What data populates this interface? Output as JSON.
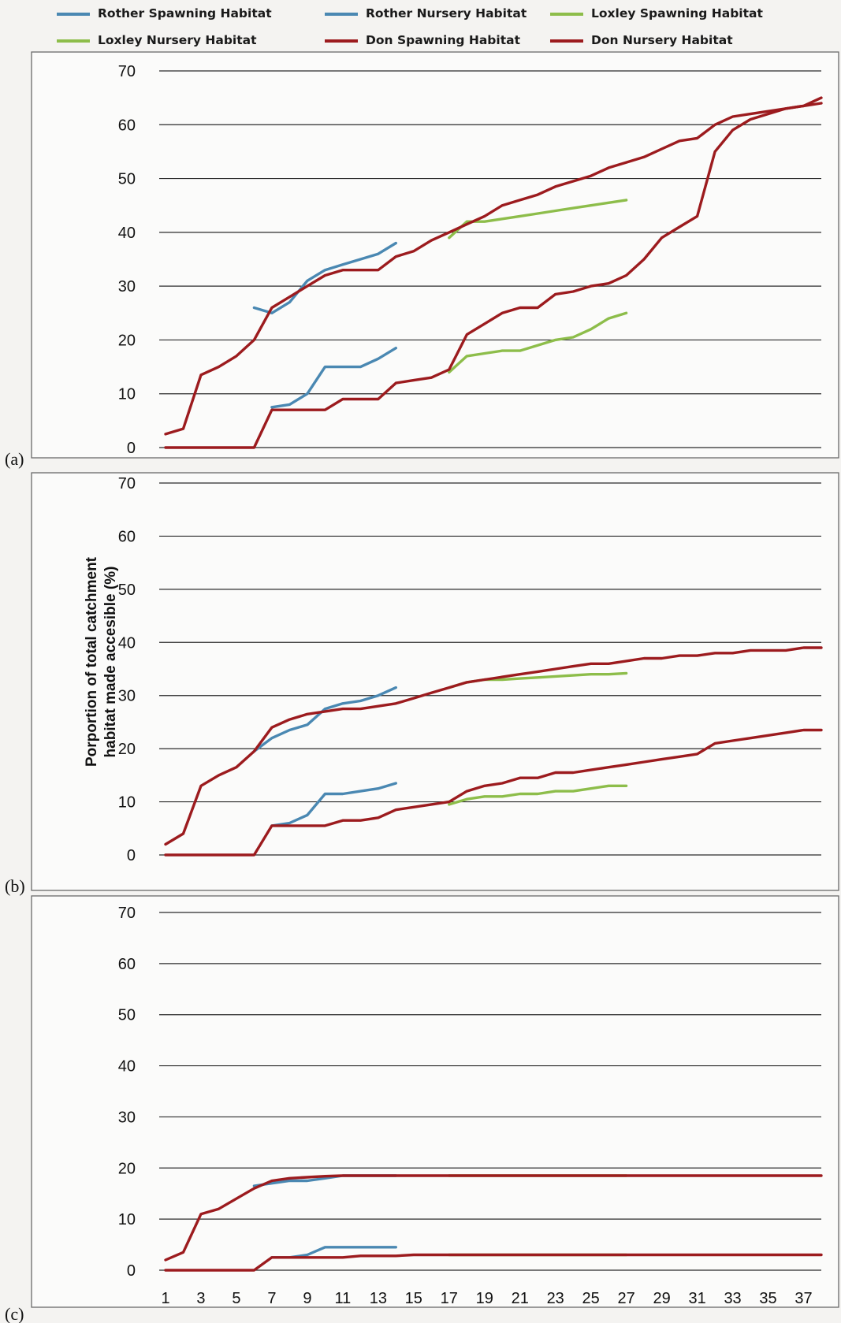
{
  "colors": {
    "rother": "#4a88b2",
    "loxley": "#8dbd4a",
    "don": "#9c1b1e"
  },
  "legend": [
    {
      "label": "Rother Spawning Habitat",
      "color": "#4a88b2"
    },
    {
      "label": "Rother Nursery Habitat",
      "color": "#4a88b2"
    },
    {
      "label": "Loxley Spawning Habitat",
      "color": "#8dbd4a"
    },
    {
      "label": "Loxley Nursery Habitat",
      "color": "#8dbd4a"
    },
    {
      "label": "Don Spawning Habitat",
      "color": "#9c1b1e"
    },
    {
      "label": "Don Nursery Habitat",
      "color": "#9c1b1e"
    }
  ],
  "ylabel_line1": "Porportion of total catchment",
  "ylabel_line2": "habitat made accesible (%)",
  "chart_data": [
    {
      "type": "line",
      "panel_label": "(a)",
      "ylim": [
        0,
        70
      ],
      "yticks": [
        0,
        10,
        20,
        30,
        40,
        50,
        60,
        70
      ],
      "xlim": [
        1,
        38
      ],
      "xticks": [],
      "grid": true,
      "series": [
        {
          "name": "Rother Spawning Habitat",
          "color": "#4a88b2",
          "x": [
            7,
            8,
            9,
            10,
            11,
            12,
            13,
            14
          ],
          "y": [
            7.5,
            8,
            10,
            15,
            15,
            15,
            16.5,
            18.5
          ]
        },
        {
          "name": "Rother Nursery Habitat",
          "color": "#4a88b2",
          "x": [
            6,
            7,
            8,
            9,
            10,
            11,
            12,
            13,
            14
          ],
          "y": [
            26,
            25,
            27,
            31,
            33,
            34,
            35,
            36,
            38
          ]
        },
        {
          "name": "Loxley Spawning Habitat",
          "color": "#8dbd4a",
          "x": [
            17,
            18,
            19,
            20,
            21,
            22,
            23,
            24,
            25,
            26,
            27
          ],
          "y": [
            14,
            17,
            17.5,
            18,
            18,
            19,
            20,
            20.5,
            22,
            24,
            25
          ]
        },
        {
          "name": "Loxley Nursery Habitat",
          "color": "#8dbd4a",
          "x": [
            17,
            18,
            19,
            20,
            21,
            22,
            23,
            24,
            25,
            26,
            27
          ],
          "y": [
            39,
            42,
            42,
            42.5,
            43,
            43.5,
            44,
            44.5,
            45,
            45.5,
            46
          ]
        },
        {
          "name": "Don Spawning Habitat",
          "color": "#9c1b1e",
          "x": [
            1,
            2,
            3,
            4,
            5,
            6,
            7,
            8,
            9,
            10,
            11,
            12,
            13,
            14,
            15,
            16,
            17,
            18,
            19,
            20,
            21,
            22,
            23,
            24,
            25,
            26,
            27,
            28,
            29,
            30,
            31,
            32,
            33,
            34,
            35,
            36,
            37,
            38
          ],
          "y": [
            0,
            0,
            0,
            0,
            0,
            0,
            7,
            7,
            7,
            7,
            9,
            9,
            9,
            12,
            12.5,
            13,
            14.5,
            21,
            23,
            25,
            26,
            26,
            28.5,
            29,
            30,
            30.5,
            32,
            35,
            39,
            41,
            43,
            55,
            59,
            61,
            62,
            63,
            63.5,
            65
          ]
        },
        {
          "name": "Don Nursery Habitat",
          "color": "#9c1b1e",
          "x": [
            1,
            2,
            3,
            4,
            5,
            6,
            7,
            8,
            9,
            10,
            11,
            12,
            13,
            14,
            15,
            16,
            17,
            18,
            19,
            20,
            21,
            22,
            23,
            24,
            25,
            26,
            27,
            28,
            29,
            30,
            31,
            32,
            33,
            34,
            35,
            36,
            37,
            38
          ],
          "y": [
            2.5,
            3.5,
            13.5,
            15,
            17,
            20,
            26,
            28,
            30,
            32,
            33,
            33,
            33,
            35.5,
            36.5,
            38.5,
            40,
            41.5,
            43,
            45,
            46,
            47,
            48.5,
            49.5,
            50.5,
            52,
            53,
            54,
            55.5,
            57,
            57.5,
            60,
            61.5,
            62,
            62.5,
            63,
            63.5,
            64
          ]
        }
      ]
    },
    {
      "type": "line",
      "panel_label": "(b)",
      "ylim": [
        0,
        70
      ],
      "yticks": [
        0,
        10,
        20,
        30,
        40,
        50,
        60,
        70
      ],
      "xlim": [
        1,
        38
      ],
      "xticks": [],
      "grid": true,
      "series": [
        {
          "name": "Rother Spawning Habitat",
          "color": "#4a88b2",
          "x": [
            7,
            8,
            9,
            10,
            11,
            12,
            13,
            14
          ],
          "y": [
            5.5,
            6,
            7.5,
            11.5,
            11.5,
            12,
            12.5,
            13.5
          ]
        },
        {
          "name": "Rother Nursery Habitat",
          "color": "#4a88b2",
          "x": [
            6,
            7,
            8,
            9,
            10,
            11,
            12,
            13,
            14
          ],
          "y": [
            19.5,
            22,
            23.5,
            24.5,
            27.5,
            28.5,
            29,
            30,
            31.5
          ]
        },
        {
          "name": "Loxley Spawning Habitat",
          "color": "#8dbd4a",
          "x": [
            17,
            18,
            19,
            20,
            21,
            22,
            23,
            24,
            25,
            26,
            27
          ],
          "y": [
            9.5,
            10.5,
            11,
            11,
            11.5,
            11.5,
            12,
            12,
            12.5,
            13,
            13
          ]
        },
        {
          "name": "Loxley Nursery Habitat",
          "color": "#8dbd4a",
          "x": [
            17,
            18,
            19,
            20,
            21,
            22,
            23,
            24,
            25,
            26,
            27
          ],
          "y": [
            31.5,
            32.5,
            33,
            33,
            33.2,
            33.4,
            33.6,
            33.8,
            34,
            34,
            34.2
          ]
        },
        {
          "name": "Don Spawning Habitat",
          "color": "#9c1b1e",
          "x": [
            1,
            2,
            3,
            4,
            5,
            6,
            7,
            8,
            9,
            10,
            11,
            12,
            13,
            14,
            15,
            16,
            17,
            18,
            19,
            20,
            21,
            22,
            23,
            24,
            25,
            26,
            27,
            28,
            29,
            30,
            31,
            32,
            33,
            34,
            35,
            36,
            37,
            38
          ],
          "y": [
            0,
            0,
            0,
            0,
            0,
            0,
            5.5,
            5.5,
            5.5,
            5.5,
            6.5,
            6.5,
            7,
            8.5,
            9,
            9.5,
            10,
            12,
            13,
            13.5,
            14.5,
            14.5,
            15.5,
            15.5,
            16,
            16.5,
            17,
            17.5,
            18,
            18.5,
            19,
            21,
            21.5,
            22,
            22.5,
            23,
            23.5,
            23.5
          ]
        },
        {
          "name": "Don Nursery Habitat",
          "color": "#9c1b1e",
          "x": [
            1,
            2,
            3,
            4,
            5,
            6,
            7,
            8,
            9,
            10,
            11,
            12,
            13,
            14,
            15,
            16,
            17,
            18,
            19,
            20,
            21,
            22,
            23,
            24,
            25,
            26,
            27,
            28,
            29,
            30,
            31,
            32,
            33,
            34,
            35,
            36,
            37,
            38
          ],
          "y": [
            2,
            4,
            13,
            15,
            16.5,
            19.5,
            24,
            25.5,
            26.5,
            27,
            27.5,
            27.5,
            28,
            28.5,
            29.5,
            30.5,
            31.5,
            32.5,
            33,
            33.5,
            34,
            34.5,
            35,
            35.5,
            36,
            36,
            36.5,
            37,
            37,
            37.5,
            37.5,
            38,
            38,
            38.5,
            38.5,
            38.5,
            39,
            39
          ]
        }
      ]
    },
    {
      "type": "line",
      "panel_label": "(c)",
      "ylim": [
        0,
        70
      ],
      "yticks": [
        0,
        10,
        20,
        30,
        40,
        50,
        60,
        70
      ],
      "xlim": [
        1,
        38
      ],
      "xticks": [
        1,
        3,
        5,
        7,
        9,
        11,
        13,
        15,
        17,
        19,
        21,
        23,
        25,
        27,
        29,
        31,
        33,
        35,
        37
      ],
      "grid": true,
      "series": [
        {
          "name": "Rother Spawning Habitat",
          "color": "#4a88b2",
          "x": [
            7,
            8,
            9,
            10,
            11,
            12,
            13,
            14
          ],
          "y": [
            2.5,
            2.5,
            3,
            4.5,
            4.5,
            4.5,
            4.5,
            4.5
          ]
        },
        {
          "name": "Rother Nursery Habitat",
          "color": "#4a88b2",
          "x": [
            6,
            7,
            8,
            9,
            10,
            11,
            12,
            13,
            14
          ],
          "y": [
            16.5,
            17,
            17.5,
            17.5,
            18,
            18.5,
            18.5,
            18.5,
            18.5
          ]
        },
        {
          "name": "Loxley Spawning Habitat",
          "color": "#8dbd4a",
          "x": [
            17,
            18,
            19,
            20,
            21,
            22,
            23,
            24,
            25,
            26,
            27
          ],
          "y": [
            3,
            3,
            3,
            3,
            3,
            3,
            3,
            3,
            3,
            3,
            3
          ]
        },
        {
          "name": "Loxley Nursery Habitat",
          "color": "#8dbd4a",
          "x": [
            17,
            18,
            19,
            20,
            21,
            22,
            23,
            24,
            25,
            26,
            27
          ],
          "y": [
            18.5,
            18.5,
            18.5,
            18.5,
            18.5,
            18.5,
            18.5,
            18.5,
            18.5,
            18.5,
            18.5
          ]
        },
        {
          "name": "Don Spawning Habitat",
          "color": "#9c1b1e",
          "x": [
            1,
            2,
            3,
            4,
            5,
            6,
            7,
            8,
            9,
            10,
            11,
            12,
            13,
            14,
            15,
            16,
            17,
            18,
            19,
            20,
            21,
            22,
            23,
            24,
            25,
            26,
            27,
            28,
            29,
            30,
            31,
            32,
            33,
            34,
            35,
            36,
            37,
            38
          ],
          "y": [
            0,
            0,
            0,
            0,
            0,
            0,
            2.5,
            2.5,
            2.5,
            2.5,
            2.5,
            2.8,
            2.8,
            2.8,
            3,
            3,
            3,
            3,
            3,
            3,
            3,
            3,
            3,
            3,
            3,
            3,
            3,
            3,
            3,
            3,
            3,
            3,
            3,
            3,
            3,
            3,
            3,
            3
          ]
        },
        {
          "name": "Don Nursery Habitat",
          "color": "#9c1b1e",
          "x": [
            1,
            2,
            3,
            4,
            5,
            6,
            7,
            8,
            9,
            10,
            11,
            12,
            13,
            14,
            15,
            16,
            17,
            18,
            19,
            20,
            21,
            22,
            23,
            24,
            25,
            26,
            27,
            28,
            29,
            30,
            31,
            32,
            33,
            34,
            35,
            36,
            37,
            38
          ],
          "y": [
            2,
            3.5,
            11,
            12,
            14,
            16,
            17.5,
            18,
            18.2,
            18.4,
            18.5,
            18.5,
            18.5,
            18.5,
            18.5,
            18.5,
            18.5,
            18.5,
            18.5,
            18.5,
            18.5,
            18.5,
            18.5,
            18.5,
            18.5,
            18.5,
            18.5,
            18.5,
            18.5,
            18.5,
            18.5,
            18.5,
            18.5,
            18.5,
            18.5,
            18.5,
            18.5,
            18.5
          ]
        }
      ]
    }
  ]
}
